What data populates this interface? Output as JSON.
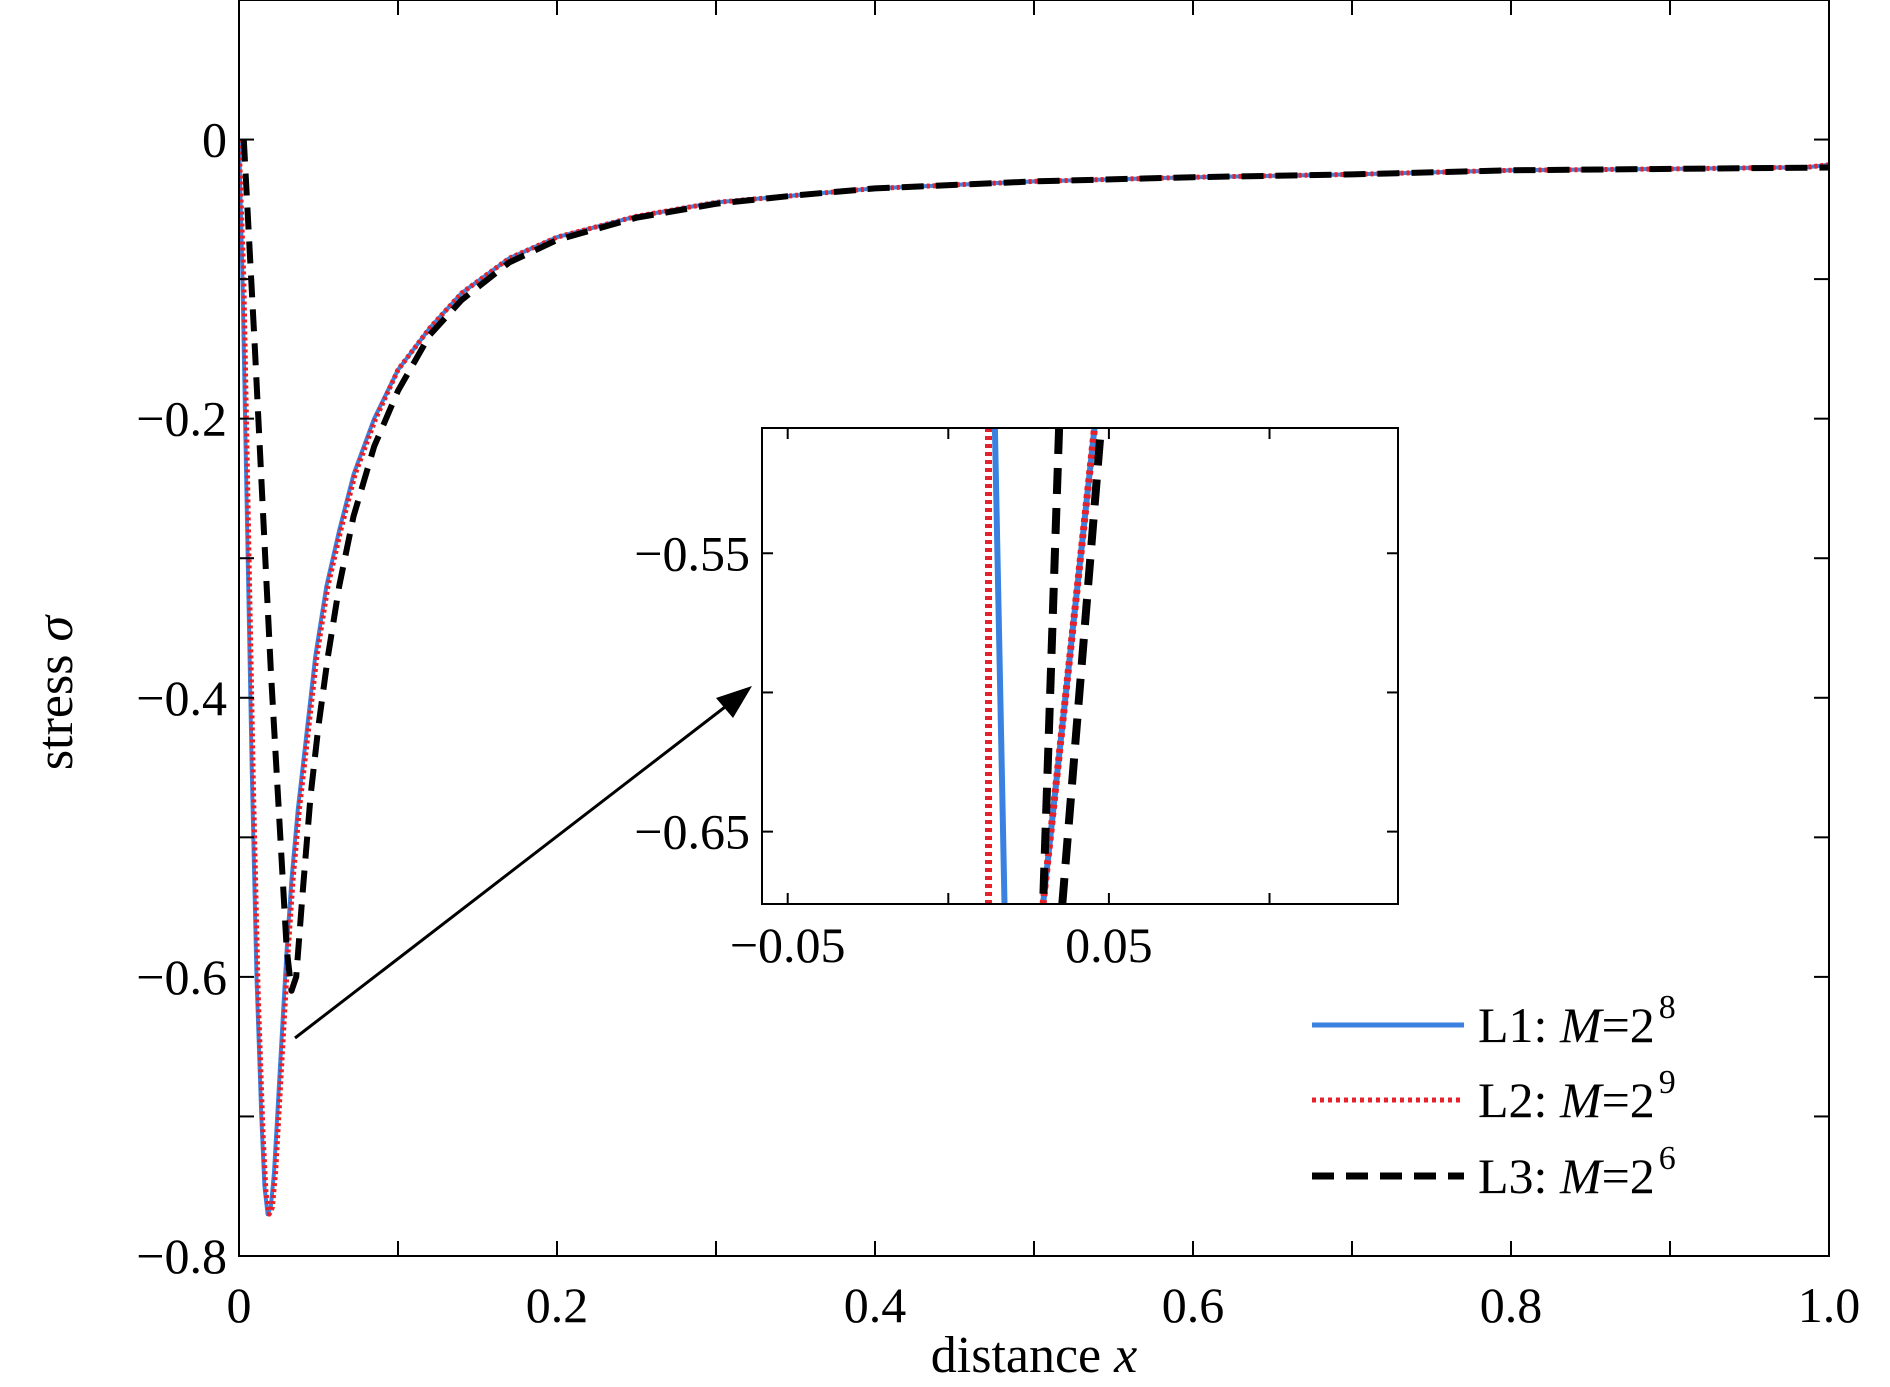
{
  "chart_data": [
    {
      "type": "line",
      "name": "main",
      "xlabel": "distance",
      "xlabel_var": "x",
      "ylabel": "stress",
      "ylabel_var": "σ",
      "xlim": [
        0,
        1.0
      ],
      "ylim": [
        -0.8,
        0.1
      ],
      "xticks": [
        0,
        0.1,
        0.2,
        0.3,
        0.4,
        0.5,
        0.6,
        0.7,
        0.8,
        0.9,
        1.0
      ],
      "xtick_labels": [
        "0",
        "",
        "0.2",
        "",
        "0.4",
        "",
        "0.6",
        "",
        "0.8",
        "",
        "1.0"
      ],
      "yticks": [
        0,
        -0.1,
        -0.2,
        -0.3,
        -0.4,
        -0.5,
        -0.6,
        -0.7,
        -0.8
      ],
      "ytick_labels": [
        "0",
        "",
        "−0.2",
        "",
        "−0.4",
        "",
        "−0.6",
        "",
        "−0.8"
      ],
      "legend_position": "bottom-right",
      "series": [
        {
          "name": "L1",
          "legend_prefix": "L1: ",
          "legend_var": "M",
          "legend_eq": "=",
          "legend_base": "2",
          "legend_exp": "8",
          "color": "#3b82e0",
          "style": "solid",
          "x": [
            0,
            0.002,
            0.005,
            0.008,
            0.011,
            0.014,
            0.016,
            0.018,
            0.02,
            0.022,
            0.024,
            0.027,
            0.03,
            0.033,
            0.037,
            0.042,
            0.048,
            0.055,
            0.063,
            0.072,
            0.085,
            0.1,
            0.12,
            0.14,
            0.17,
            0.2,
            0.25,
            0.3,
            0.35,
            0.4,
            0.5,
            0.6,
            0.7,
            0.8,
            0.9,
            0.97,
            0.985,
            1.0
          ],
          "y": [
            0,
            -0.09,
            -0.27,
            -0.45,
            -0.6,
            -0.7,
            -0.75,
            -0.77,
            -0.765,
            -0.74,
            -0.7,
            -0.64,
            -0.58,
            -0.53,
            -0.48,
            -0.43,
            -0.37,
            -0.32,
            -0.28,
            -0.24,
            -0.2,
            -0.165,
            -0.135,
            -0.11,
            -0.085,
            -0.07,
            -0.055,
            -0.045,
            -0.04,
            -0.035,
            -0.03,
            -0.027,
            -0.025,
            -0.022,
            -0.021,
            -0.02,
            -0.02,
            -0.018
          ]
        },
        {
          "name": "L2",
          "legend_prefix": "L2: ",
          "legend_var": "M",
          "legend_eq": "=",
          "legend_base": "2",
          "legend_exp": "9",
          "color": "#e8202a",
          "style": "dotted",
          "x": [
            0,
            0.003,
            0.006,
            0.009,
            0.012,
            0.015,
            0.017,
            0.019,
            0.021,
            0.023,
            0.025,
            0.028,
            0.031,
            0.034,
            0.038,
            0.043,
            0.049,
            0.056,
            0.064,
            0.073,
            0.086,
            0.1,
            0.12,
            0.14,
            0.17,
            0.2,
            0.25,
            0.3,
            0.35,
            0.4,
            0.5,
            0.6,
            0.7,
            0.8,
            0.9,
            0.97,
            0.985,
            1.0
          ],
          "y": [
            0,
            -0.1,
            -0.28,
            -0.46,
            -0.61,
            -0.71,
            -0.755,
            -0.77,
            -0.765,
            -0.74,
            -0.7,
            -0.64,
            -0.58,
            -0.53,
            -0.48,
            -0.43,
            -0.37,
            -0.32,
            -0.28,
            -0.24,
            -0.2,
            -0.165,
            -0.135,
            -0.11,
            -0.085,
            -0.07,
            -0.055,
            -0.045,
            -0.04,
            -0.035,
            -0.03,
            -0.027,
            -0.025,
            -0.022,
            -0.021,
            -0.02,
            -0.02,
            -0.018
          ]
        },
        {
          "name": "L3",
          "legend_prefix": "L3: ",
          "legend_var": "M",
          "legend_eq": "=",
          "legend_base": "2",
          "legend_exp": "6",
          "color": "#000000",
          "style": "dashed",
          "x": [
            0.003,
            0.01,
            0.02,
            0.03,
            0.033,
            0.036,
            0.04,
            0.045,
            0.05,
            0.056,
            0.063,
            0.072,
            0.085,
            0.1,
            0.12,
            0.14,
            0.17,
            0.2,
            0.25,
            0.3,
            0.35,
            0.4,
            0.5,
            0.6,
            0.7,
            0.8,
            0.9,
            1.0
          ],
          "y": [
            0,
            -0.15,
            -0.38,
            -0.58,
            -0.61,
            -0.6,
            -0.54,
            -0.47,
            -0.42,
            -0.37,
            -0.32,
            -0.27,
            -0.22,
            -0.18,
            -0.14,
            -0.115,
            -0.088,
            -0.072,
            -0.056,
            -0.046,
            -0.04,
            -0.035,
            -0.03,
            -0.027,
            -0.025,
            -0.022,
            -0.021,
            -0.02
          ]
        }
      ],
      "arrow": {
        "from": [
          0.037,
          -0.65
        ],
        "to": "inset"
      }
    },
    {
      "type": "line",
      "name": "inset",
      "xlim": [
        -0.058,
        0.14
      ],
      "ylim": [
        -0.676,
        -0.505
      ],
      "xticks": [
        -0.05,
        0,
        0.05,
        0.1
      ],
      "xtick_labels": [
        "−0.05",
        "",
        "0.05",
        ""
      ],
      "yticks": [
        -0.55,
        -0.6,
        -0.65
      ],
      "ytick_labels": [
        "−0.55",
        "",
        "−0.65"
      ],
      "series": [
        {
          "name": "L1 left",
          "color": "#3b82e0",
          "style": "solid",
          "x": [
            0.0145,
            0.0175
          ],
          "y": [
            -0.505,
            -0.676
          ]
        },
        {
          "name": "L1 right",
          "color": "#3b82e0",
          "style": "solid",
          "x": [
            0.0295,
            0.0455
          ],
          "y": [
            -0.676,
            -0.505
          ]
        },
        {
          "name": "L2 left",
          "color": "#e8202a",
          "style": "dotted",
          "x": [
            0.0125,
            0.0125
          ],
          "y": [
            -0.505,
            -0.676
          ]
        },
        {
          "name": "L2 right",
          "color": "#e8202a",
          "style": "dotted",
          "x": [
            0.0295,
            0.0455
          ],
          "y": [
            -0.676,
            -0.505
          ]
        },
        {
          "name": "L3 left",
          "color": "#000000",
          "style": "dashed",
          "x": [
            0.0345,
            0.0295
          ],
          "y": [
            -0.505,
            -0.676
          ]
        },
        {
          "name": "L3 right",
          "color": "#000000",
          "style": "dashed",
          "x": [
            0.0355,
            0.0475
          ],
          "y": [
            -0.676,
            -0.505
          ]
        }
      ]
    }
  ]
}
